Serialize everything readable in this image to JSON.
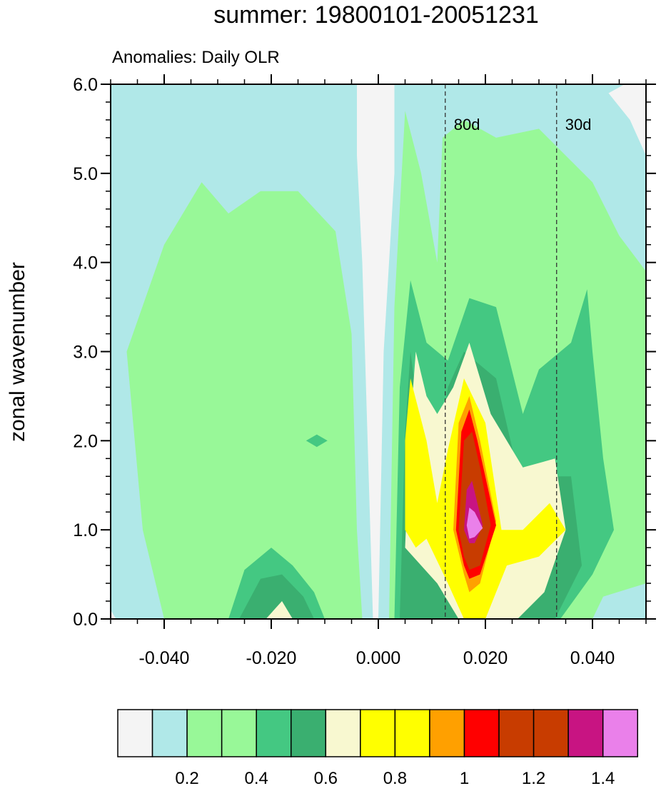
{
  "chart_data": {
    "type": "contour",
    "title": "summer: 19800101-20051231",
    "subtitle": "Anomalies: Daily OLR",
    "xlabel": "",
    "ylabel": "zonal wavenumber",
    "xlim": [
      -0.05,
      0.05
    ],
    "ylim": [
      0,
      6
    ],
    "x_ticks": [
      -0.04,
      -0.02,
      0.0,
      0.02,
      0.04
    ],
    "x_tick_labels": [
      "-0.040",
      "-0.020",
      "0.000",
      "0.020",
      "0.040"
    ],
    "y_ticks": [
      0,
      1,
      2,
      3,
      4,
      5,
      6
    ],
    "y_tick_labels": [
      "0.0",
      "1.0",
      "2.0",
      "3.0",
      "4.0",
      "5.0",
      "6.0"
    ],
    "period_lines": [
      {
        "label": "80d",
        "x": 0.0125
      },
      {
        "label": "30d",
        "x": 0.0333
      }
    ],
    "colorbar": {
      "colors": [
        "#f4f4f4",
        "#b0e8e8",
        "#98f898",
        "#98f898",
        "#44c882",
        "#3aaf70",
        "#f8f8d0",
        "#ffff00",
        "#ffff00",
        "#ffa000",
        "#ff0000",
        "#c83c00",
        "#c83c00",
        "#c81482",
        "#ea80ea"
      ],
      "tick_labels": [
        "0.2",
        "0.4",
        "0.6",
        "0.8",
        "1",
        "1.2",
        "1.4"
      ],
      "tick_after_box": [
        1,
        3,
        5,
        7,
        9,
        11,
        13
      ]
    },
    "contour_regions": [
      {
        "color": "#98f898",
        "points": [
          [
            -0.047,
            3.0
          ],
          [
            -0.04,
            4.2
          ],
          [
            -0.033,
            4.9
          ],
          [
            -0.028,
            4.55
          ],
          [
            -0.022,
            4.8
          ],
          [
            -0.015,
            4.8
          ],
          [
            -0.008,
            4.35
          ],
          [
            -0.005,
            3.2
          ],
          [
            -0.004,
            1.0
          ],
          [
            -0.003,
            0.0
          ],
          [
            -0.04,
            0.0
          ],
          [
            -0.044,
            1.0
          ]
        ]
      },
      {
        "color": "#98f898",
        "points": [
          [
            0.002,
            0.0
          ],
          [
            0.003,
            3.5
          ],
          [
            0.005,
            5.7
          ],
          [
            0.008,
            5.0
          ],
          [
            0.011,
            4.0
          ],
          [
            0.012,
            5.4
          ],
          [
            0.016,
            5.6
          ],
          [
            0.022,
            5.4
          ],
          [
            0.03,
            5.5
          ],
          [
            0.035,
            5.2
          ],
          [
            0.04,
            4.9
          ],
          [
            0.045,
            4.3
          ],
          [
            0.05,
            3.9
          ],
          [
            0.05,
            0.4
          ],
          [
            0.042,
            0.25
          ],
          [
            0.04,
            0.0
          ]
        ]
      },
      {
        "color": "#44c882",
        "points": [
          [
            0.003,
            0.0
          ],
          [
            0.004,
            2.6
          ],
          [
            0.006,
            3.8
          ],
          [
            0.009,
            3.1
          ],
          [
            0.013,
            2.9
          ],
          [
            0.017,
            3.6
          ],
          [
            0.022,
            3.5
          ],
          [
            0.027,
            2.3
          ],
          [
            0.03,
            2.8
          ],
          [
            0.036,
            3.1
          ],
          [
            0.039,
            3.7
          ],
          [
            0.04,
            3.0
          ],
          [
            0.042,
            1.8
          ],
          [
            0.044,
            1.0
          ],
          [
            0.04,
            0.5
          ],
          [
            0.034,
            0.0
          ]
        ]
      },
      {
        "color": "#3aaf70",
        "points": [
          [
            0.004,
            0.0
          ],
          [
            0.005,
            2.1
          ],
          [
            0.006,
            3.0
          ],
          [
            0.008,
            2.1
          ],
          [
            0.011,
            1.8
          ],
          [
            0.013,
            2.6
          ],
          [
            0.016,
            3.0
          ],
          [
            0.022,
            2.7
          ],
          [
            0.027,
            1.4
          ],
          [
            0.033,
            1.6
          ],
          [
            0.036,
            1.6
          ],
          [
            0.038,
            0.6
          ],
          [
            0.033,
            0.0
          ]
        ]
      },
      {
        "color": "#f8f8d0",
        "points": [
          [
            0.005,
            0.8
          ],
          [
            0.006,
            2.2
          ],
          [
            0.007,
            3.0
          ],
          [
            0.009,
            2.5
          ],
          [
            0.011,
            2.3
          ],
          [
            0.014,
            2.6
          ],
          [
            0.017,
            3.1
          ],
          [
            0.021,
            2.3
          ],
          [
            0.027,
            1.7
          ],
          [
            0.033,
            1.8
          ],
          [
            0.035,
            1.0
          ],
          [
            0.031,
            0.3
          ],
          [
            0.026,
            0.0
          ],
          [
            0.015,
            0.0
          ],
          [
            0.011,
            0.4
          ],
          [
            0.008,
            0.6
          ]
        ]
      },
      {
        "color": "#ffff00",
        "points": [
          [
            0.005,
            1.0
          ],
          [
            0.005,
            2.0
          ],
          [
            0.006,
            2.7
          ],
          [
            0.009,
            2.0
          ],
          [
            0.011,
            1.3
          ],
          [
            0.013,
            1.9
          ],
          [
            0.016,
            2.7
          ],
          [
            0.02,
            2.2
          ],
          [
            0.023,
            1.0
          ],
          [
            0.027,
            1.0
          ],
          [
            0.032,
            1.3
          ],
          [
            0.035,
            1.0
          ],
          [
            0.03,
            0.7
          ],
          [
            0.024,
            0.6
          ],
          [
            0.02,
            0.0
          ],
          [
            0.016,
            0.0
          ],
          [
            0.013,
            0.4
          ],
          [
            0.009,
            0.9
          ],
          [
            0.007,
            0.8
          ]
        ]
      },
      {
        "color": "#ffa000",
        "points": [
          [
            0.014,
            1.0
          ],
          [
            0.015,
            2.2
          ],
          [
            0.017,
            2.5
          ],
          [
            0.019,
            2.0
          ],
          [
            0.022,
            1.1
          ],
          [
            0.019,
            0.4
          ],
          [
            0.017,
            0.3
          ],
          [
            0.016,
            0.5
          ]
        ]
      },
      {
        "color": "#ff0000",
        "points": [
          [
            0.0145,
            1.0
          ],
          [
            0.0155,
            2.1
          ],
          [
            0.017,
            2.35
          ],
          [
            0.0185,
            2.0
          ],
          [
            0.022,
            1.05
          ],
          [
            0.019,
            0.5
          ],
          [
            0.017,
            0.45
          ],
          [
            0.016,
            0.6
          ]
        ]
      },
      {
        "color": "#c83c00",
        "points": [
          [
            0.015,
            1.0
          ],
          [
            0.016,
            2.0
          ],
          [
            0.0175,
            2.1
          ],
          [
            0.019,
            1.7
          ],
          [
            0.021,
            1.05
          ],
          [
            0.019,
            0.6
          ],
          [
            0.017,
            0.55
          ],
          [
            0.016,
            0.7
          ]
        ]
      },
      {
        "color": "#c81482",
        "points": [
          [
            0.016,
            1.0
          ],
          [
            0.0165,
            1.45
          ],
          [
            0.0175,
            1.55
          ],
          [
            0.0185,
            1.3
          ],
          [
            0.0195,
            1.05
          ],
          [
            0.018,
            0.85
          ],
          [
            0.017,
            0.85
          ]
        ]
      },
      {
        "color": "#ea80ea",
        "points": [
          [
            0.0165,
            1.05
          ],
          [
            0.017,
            1.25
          ],
          [
            0.018,
            1.2
          ],
          [
            0.0195,
            1.02
          ],
          [
            0.018,
            0.92
          ],
          [
            0.017,
            0.9
          ]
        ]
      },
      {
        "color": "#44c882",
        "points": [
          [
            -0.028,
            0.0
          ],
          [
            -0.025,
            0.55
          ],
          [
            -0.02,
            0.8
          ],
          [
            -0.016,
            0.6
          ],
          [
            -0.012,
            0.3
          ],
          [
            -0.01,
            0.0
          ]
        ]
      },
      {
        "color": "#3aaf70",
        "points": [
          [
            -0.026,
            0.0
          ],
          [
            -0.022,
            0.45
          ],
          [
            -0.018,
            0.5
          ],
          [
            -0.014,
            0.25
          ],
          [
            -0.012,
            0.0
          ]
        ]
      },
      {
        "color": "#f8f8d0",
        "points": [
          [
            -0.021,
            0.0
          ],
          [
            -0.018,
            0.2
          ],
          [
            -0.016,
            0.0
          ]
        ]
      },
      {
        "color": "#44c882",
        "points": [
          [
            -0.0135,
            2.0
          ],
          [
            -0.0115,
            2.07
          ],
          [
            -0.0095,
            2.0
          ],
          [
            -0.0115,
            1.93
          ]
        ]
      },
      {
        "color": "#f4f4f4",
        "points": [
          [
            -0.004,
            6.0
          ],
          [
            0.003,
            6.0
          ],
          [
            0.003,
            5.0
          ],
          [
            0.001,
            3.0
          ],
          [
            0.0,
            0.0
          ],
          [
            -0.001,
            0.0
          ],
          [
            -0.002,
            2.0
          ],
          [
            -0.003,
            4.0
          ],
          [
            -0.004,
            5.2
          ]
        ]
      },
      {
        "color": "#f4f4f4",
        "points": [
          [
            0.046,
            6.0
          ],
          [
            0.05,
            6.0
          ],
          [
            0.05,
            5.2
          ],
          [
            0.047,
            5.6
          ],
          [
            0.043,
            5.9
          ]
        ]
      },
      {
        "color": "#f4f4f4",
        "points": [
          [
            -0.05,
            0.0
          ],
          [
            -0.049,
            0.0
          ],
          [
            -0.05,
            0.1
          ]
        ]
      }
    ]
  }
}
